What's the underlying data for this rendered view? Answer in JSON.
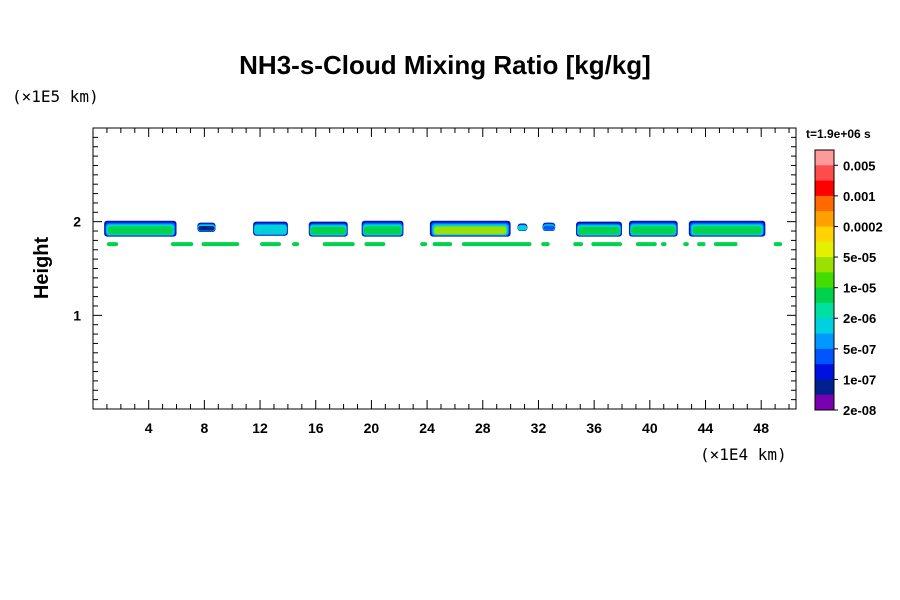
{
  "chart_data": {
    "type": "heatmap",
    "title": "NH3-s-Cloud Mixing Ratio [kg/kg]",
    "ylabel": "Height",
    "x_unit": "(×1E4 km)",
    "y_unit": "(×1E5 km)",
    "xlim": [
      0,
      50.5
    ],
    "ylim": [
      0,
      3.0
    ],
    "x_ticks": [
      4,
      8,
      12,
      16,
      20,
      24,
      28,
      32,
      36,
      40,
      44,
      48
    ],
    "y_ticks": [
      1,
      2
    ],
    "time_label": "t=1.9e+06 s",
    "colorbar": {
      "levels": [
        "0.005",
        "0.001",
        "0.0002",
        "5e-05",
        "1e-05",
        "2e-06",
        "5e-07",
        "1e-07",
        "2e-08"
      ],
      "colors": [
        "#ff9a9a",
        "#ff4d4d",
        "#ff0000",
        "#ff6a00",
        "#ff9f00",
        "#ffd400",
        "#e5f000",
        "#9be000",
        "#44dd00",
        "#00d24d",
        "#00e0a0",
        "#00d0e0",
        "#0099ff",
        "#0055ff",
        "#0010e0",
        "#002090",
        "#7a00b0"
      ]
    },
    "cloud_segments": [
      {
        "x0": 0.8,
        "x1": 6.0,
        "y_top": 2.01,
        "y_bottom": 1.84,
        "level": "1e-05"
      },
      {
        "x0": 7.5,
        "x1": 8.8,
        "y_top": 1.99,
        "y_bottom": 1.89,
        "level": "1e-07"
      },
      {
        "x0": 11.5,
        "x1": 14.0,
        "y_top": 2.0,
        "y_bottom": 1.85,
        "level": "2e-06"
      },
      {
        "x0": 15.5,
        "x1": 18.3,
        "y_top": 2.0,
        "y_bottom": 1.84,
        "level": "1e-05"
      },
      {
        "x0": 19.3,
        "x1": 22.3,
        "y_top": 2.01,
        "y_bottom": 1.84,
        "level": "1e-05"
      },
      {
        "x0": 24.2,
        "x1": 30.0,
        "y_top": 2.01,
        "y_bottom": 1.84,
        "level": "5e-05"
      },
      {
        "x0": 30.5,
        "x1": 31.2,
        "y_top": 1.98,
        "y_bottom": 1.9,
        "level": "2e-06"
      },
      {
        "x0": 32.3,
        "x1": 33.2,
        "y_top": 1.99,
        "y_bottom": 1.9,
        "level": "5e-07"
      },
      {
        "x0": 34.7,
        "x1": 38.0,
        "y_top": 2.0,
        "y_bottom": 1.84,
        "level": "1e-05"
      },
      {
        "x0": 38.5,
        "x1": 42.0,
        "y_top": 2.01,
        "y_bottom": 1.84,
        "level": "1e-05"
      },
      {
        "x0": 42.8,
        "x1": 48.3,
        "y_top": 2.01,
        "y_bottom": 1.84,
        "level": "1e-05"
      }
    ],
    "lower_band": {
      "y": 1.76,
      "level": "1e-05",
      "x_segments": [
        [
          1.0,
          1.8
        ],
        [
          5.6,
          7.2
        ],
        [
          7.8,
          10.5
        ],
        [
          12.0,
          13.5
        ],
        [
          14.3,
          14.8
        ],
        [
          16.5,
          18.8
        ],
        [
          19.5,
          21.0
        ],
        [
          23.5,
          24.0
        ],
        [
          24.4,
          25.8
        ],
        [
          26.5,
          31.5
        ],
        [
          32.2,
          32.8
        ],
        [
          34.5,
          35.2
        ],
        [
          35.8,
          38.0
        ],
        [
          39.0,
          40.5
        ],
        [
          40.8,
          41.2
        ],
        [
          42.4,
          42.8
        ],
        [
          43.4,
          44.0
        ],
        [
          44.6,
          46.3
        ],
        [
          48.9,
          49.5
        ]
      ]
    }
  }
}
